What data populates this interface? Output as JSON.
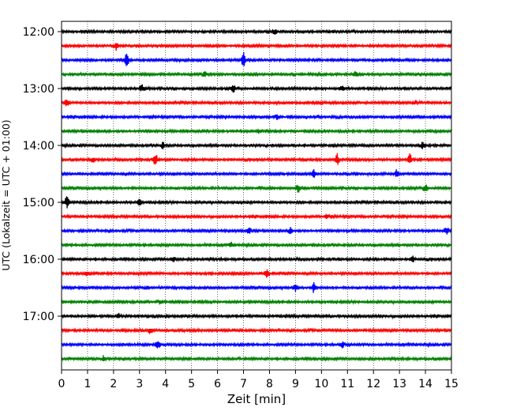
{
  "chart_data": {
    "type": "line",
    "title": "",
    "xlabel": "Zeit  [min]",
    "ylabel": "UTC (Lokalzeit = UTC + 01:00)",
    "xlim": [
      0,
      15
    ],
    "x_ticks": [
      "0",
      "1",
      "2",
      "3",
      "4",
      "5",
      "6",
      "7",
      "8",
      "9",
      "10",
      "11",
      "12",
      "13",
      "14",
      "15"
    ],
    "y_ticks": [
      "12:00",
      "13:00",
      "14:00",
      "15:00",
      "16:00",
      "17:00"
    ],
    "grid": "vertical dotted",
    "trace_interval_min": 15,
    "trace_color_cycle": [
      "#000000",
      "#ff0000",
      "#0000ff",
      "#008000"
    ],
    "traces": [
      {
        "start": "12:00",
        "color": "#000000",
        "events": [
          {
            "x": 8.2,
            "amp": 1.3
          }
        ]
      },
      {
        "start": "12:15",
        "color": "#ff0000",
        "events": [
          {
            "x": 2.1,
            "amp": 1.6
          }
        ]
      },
      {
        "start": "12:30",
        "color": "#0000ff",
        "events": [
          {
            "x": 2.5,
            "amp": 2.4
          },
          {
            "x": 7.0,
            "amp": 3.2
          }
        ]
      },
      {
        "start": "12:45",
        "color": "#008000",
        "events": [
          {
            "x": 5.5,
            "amp": 1.2
          },
          {
            "x": 11.3,
            "amp": 1.2
          }
        ]
      },
      {
        "start": "13:00",
        "color": "#000000",
        "events": [
          {
            "x": 3.1,
            "amp": 1.8
          },
          {
            "x": 6.6,
            "amp": 1.8
          },
          {
            "x": 10.8,
            "amp": 1.5
          }
        ]
      },
      {
        "start": "13:15",
        "color": "#ff0000",
        "events": [
          {
            "x": 0.2,
            "amp": 1.6
          },
          {
            "x": 13.6,
            "amp": 1.1
          }
        ]
      },
      {
        "start": "13:30",
        "color": "#0000ff",
        "events": [
          {
            "x": 8.3,
            "amp": 1.1
          }
        ]
      },
      {
        "start": "13:45",
        "color": "#008000",
        "events": [
          {
            "x": 7.6,
            "amp": 1.0
          }
        ]
      },
      {
        "start": "14:00",
        "color": "#000000",
        "events": [
          {
            "x": 3.9,
            "amp": 1.5
          },
          {
            "x": 13.9,
            "amp": 1.6
          }
        ]
      },
      {
        "start": "14:15",
        "color": "#ff0000",
        "events": [
          {
            "x": 1.2,
            "amp": 1.2
          },
          {
            "x": 3.6,
            "amp": 2.8
          },
          {
            "x": 10.6,
            "amp": 2.5
          },
          {
            "x": 13.4,
            "amp": 2.5
          }
        ]
      },
      {
        "start": "14:30",
        "color": "#0000ff",
        "events": [
          {
            "x": 9.7,
            "amp": 1.8
          },
          {
            "x": 12.9,
            "amp": 1.5
          }
        ]
      },
      {
        "start": "14:45",
        "color": "#008000",
        "events": [
          {
            "x": 9.1,
            "amp": 1.9
          },
          {
            "x": 14.0,
            "amp": 1.8
          }
        ]
      },
      {
        "start": "15:00",
        "color": "#000000",
        "events": [
          {
            "x": 0.2,
            "amp": 2.6
          },
          {
            "x": 3.0,
            "amp": 1.4
          }
        ]
      },
      {
        "start": "15:15",
        "color": "#ff0000",
        "events": [
          {
            "x": 10.2,
            "amp": 1.1
          }
        ]
      },
      {
        "start": "15:30",
        "color": "#0000ff",
        "events": [
          {
            "x": 7.2,
            "amp": 1.5
          },
          {
            "x": 8.8,
            "amp": 1.4
          },
          {
            "x": 14.8,
            "amp": 1.5
          }
        ]
      },
      {
        "start": "15:45",
        "color": "#008000",
        "events": [
          {
            "x": 6.5,
            "amp": 1.0
          }
        ]
      },
      {
        "start": "16:00",
        "color": "#000000",
        "events": [
          {
            "x": 4.3,
            "amp": 1.2
          },
          {
            "x": 13.5,
            "amp": 1.6
          }
        ]
      },
      {
        "start": "16:15",
        "color": "#ff0000",
        "events": [
          {
            "x": 1.0,
            "amp": 1.2
          },
          {
            "x": 7.9,
            "amp": 2.5
          }
        ]
      },
      {
        "start": "16:30",
        "color": "#0000ff",
        "events": [
          {
            "x": 9.7,
            "amp": 2.2
          },
          {
            "x": 9.0,
            "amp": 1.3
          }
        ]
      },
      {
        "start": "16:45",
        "color": "#008000",
        "events": [
          {
            "x": 3.8,
            "amp": 1.1
          }
        ]
      },
      {
        "start": "17:00",
        "color": "#000000",
        "events": [
          {
            "x": 2.2,
            "amp": 1.0
          }
        ]
      },
      {
        "start": "17:15",
        "color": "#ff0000",
        "events": [
          {
            "x": 3.4,
            "amp": 1.3
          }
        ]
      },
      {
        "start": "17:30",
        "color": "#0000ff",
        "events": [
          {
            "x": 3.7,
            "amp": 1.6
          },
          {
            "x": 10.8,
            "amp": 1.2
          }
        ]
      },
      {
        "start": "17:45",
        "color": "#008000",
        "events": [
          {
            "x": 1.6,
            "amp": 1.0
          }
        ]
      }
    ]
  }
}
